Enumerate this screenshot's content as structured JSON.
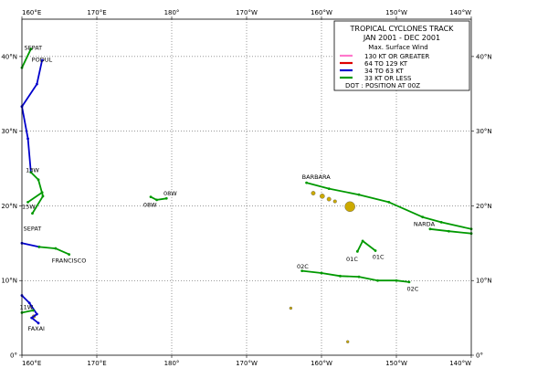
{
  "map": {
    "lon_range": [
      160,
      220
    ],
    "lat_range": [
      0,
      45
    ],
    "grid": true,
    "land_color": "#ccaa00",
    "longitude_ticks": [
      "160°E",
      "170°E",
      "180°",
      "170°W",
      "160°W",
      "150°W",
      "140°W"
    ],
    "latitude_ticks": [
      "0°",
      "10°N",
      "20°N",
      "30°N",
      "40°N"
    ]
  },
  "legend": {
    "title": "TROPICAL CYCLONES TRACK",
    "period": "JAN 2001  -  DEC 2001",
    "subtitle": "Max. Surface Wind",
    "dot_note": "DOT : POSITION AT 00Z",
    "items": [
      {
        "label": "130 KT OR GREATER",
        "color": "#ff77cc"
      },
      {
        "label": "64 TO 129 KT",
        "color": "#dd0000"
      },
      {
        "label": "34 TO 63 KT",
        "color": "#0000cc"
      },
      {
        "label": "33 KT OR LESS",
        "color": "#009900"
      }
    ]
  },
  "storm_labels": [
    {
      "text": "SEPAT",
      "lon": 160.3,
      "lat": 40.9
    },
    {
      "text": "PODUL",
      "lon": 161.3,
      "lat": 39.3
    },
    {
      "text": "13W",
      "lon": 160.5,
      "lat": 24.5
    },
    {
      "text": "15W",
      "lon": 160.0,
      "lat": 19.6
    },
    {
      "text": "SEPAT",
      "lon": 160.2,
      "lat": 16.7
    },
    {
      "text": "FRANCISCO",
      "lon": 164.0,
      "lat": 12.4
    },
    {
      "text": "11W",
      "lon": 159.7,
      "lat": 6.2
    },
    {
      "text": "FAXAI",
      "lon": 160.8,
      "lat": 3.3
    },
    {
      "text": "08W",
      "lon": 178.9,
      "lat": 21.4
    },
    {
      "text": "08W",
      "lon": 176.2,
      "lat": 19.9
    },
    {
      "text": "BARBARA",
      "lon": 197.4,
      "lat": 23.6
    },
    {
      "text": "NARDA",
      "lon": 212.3,
      "lat": 17.3
    },
    {
      "text": "01C",
      "lon": 203.3,
      "lat": 12.6
    },
    {
      "text": "01C",
      "lon": 206.8,
      "lat": 12.9
    },
    {
      "text": "02C",
      "lon": 196.7,
      "lat": 11.6
    },
    {
      "text": "02C",
      "lon": 211.4,
      "lat": 8.6
    }
  ],
  "tracks": [
    {
      "color": "#009900",
      "points": [
        [
          160.0,
          38.5
        ],
        [
          161.2,
          41.0
        ]
      ]
    },
    {
      "color": "#0000cc",
      "points": [
        [
          162.7,
          39.5
        ],
        [
          162.0,
          36.3
        ],
        [
          160.0,
          33.3
        ]
      ]
    },
    {
      "color": "#0000cc",
      "points": [
        [
          160.0,
          33.3
        ],
        [
          160.8,
          29.0
        ],
        [
          161.2,
          24.5
        ]
      ]
    },
    {
      "color": "#009900",
      "points": [
        [
          161.2,
          24.5
        ],
        [
          162.2,
          23.5
        ],
        [
          162.8,
          21.3
        ],
        [
          161.4,
          19.0
        ]
      ]
    },
    {
      "color": "#009900",
      "points": [
        [
          160.8,
          20.5
        ],
        [
          162.7,
          21.8
        ]
      ]
    },
    {
      "color": "#0000cc",
      "points": [
        [
          160.0,
          15.0
        ],
        [
          162.3,
          14.5
        ]
      ]
    },
    {
      "color": "#009900",
      "points": [
        [
          162.3,
          14.5
        ],
        [
          164.5,
          14.3
        ],
        [
          166.3,
          13.5
        ]
      ]
    },
    {
      "color": "#0000cc",
      "points": [
        [
          160.0,
          8.0
        ],
        [
          161.0,
          7.0
        ],
        [
          162.0,
          5.5
        ],
        [
          161.3,
          5.0
        ],
        [
          162.2,
          4.3
        ]
      ]
    },
    {
      "color": "#009900",
      "points": [
        [
          160.0,
          5.7
        ],
        [
          161.5,
          6.0
        ]
      ]
    },
    {
      "color": "#009900",
      "points": [
        [
          177.2,
          21.2
        ],
        [
          178.0,
          20.8
        ],
        [
          179.3,
          21.0
        ]
      ]
    },
    {
      "color": "#009900",
      "points": [
        [
          198.0,
          23.1
        ],
        [
          201.0,
          22.3
        ],
        [
          205.0,
          21.5
        ],
        [
          209.0,
          20.5
        ],
        [
          213.5,
          18.5
        ],
        [
          216.0,
          17.8
        ],
        [
          220.0,
          16.9
        ]
      ]
    },
    {
      "color": "#009900",
      "points": [
        [
          214.5,
          16.9
        ],
        [
          217.0,
          16.6
        ],
        [
          220.0,
          16.3
        ]
      ]
    },
    {
      "color": "#009900",
      "points": [
        [
          204.8,
          13.9
        ],
        [
          205.5,
          15.3
        ],
        [
          207.2,
          14.0
        ]
      ]
    },
    {
      "color": "#009900",
      "points": [
        [
          197.4,
          11.3
        ],
        [
          200.0,
          11.0
        ],
        [
          202.5,
          10.6
        ],
        [
          205.0,
          10.5
        ],
        [
          207.5,
          10.0
        ],
        [
          210.0,
          10.0
        ],
        [
          211.7,
          9.8
        ]
      ]
    }
  ],
  "islands": [
    {
      "lon": 198.9,
      "lat": 21.7,
      "size": 0.3
    },
    {
      "lon": 200.1,
      "lat": 21.3,
      "size": 0.35
    },
    {
      "lon": 201.0,
      "lat": 20.9,
      "size": 0.3
    },
    {
      "lon": 203.8,
      "lat": 19.9,
      "size": 0.75
    },
    {
      "lon": 201.8,
      "lat": 20.6,
      "size": 0.25
    },
    {
      "lon": 203.5,
      "lat": 1.8,
      "size": 0.2
    },
    {
      "lon": 195.9,
      "lat": 6.3,
      "size": 0.2
    },
    {
      "lon": 161.6,
      "lat": 5.2,
      "size": 0.25
    }
  ]
}
